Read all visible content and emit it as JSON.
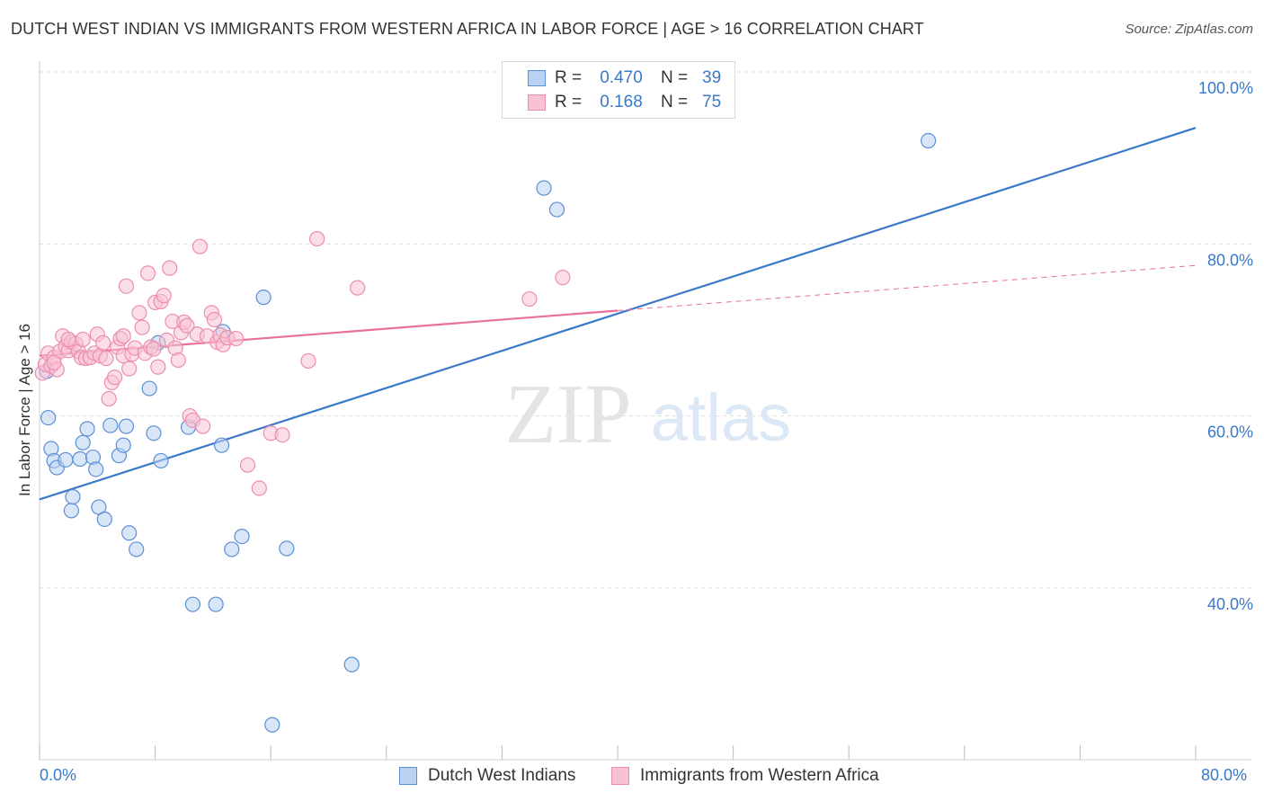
{
  "title": "DUTCH WEST INDIAN VS IMMIGRANTS FROM WESTERN AFRICA IN LABOR FORCE | AGE > 16 CORRELATION CHART",
  "source": "Source: ZipAtlas.com",
  "watermark": {
    "zip": "ZIP",
    "atlas": "atlas"
  },
  "legend": {
    "series1": {
      "r_label": "R =",
      "r_value": "0.470",
      "n_label": "N =",
      "n_value": "39"
    },
    "series2": {
      "r_label": "R =",
      "r_value": "0.168",
      "n_label": "N =",
      "n_value": "75"
    }
  },
  "x_min_label": "0.0%",
  "x_max_label": "80.0%",
  "colors": {
    "blue": "#3a78c9",
    "blue_fill": "#b9d2f2",
    "blue_stroke": "#5b8fd6",
    "pink": "#e8709a",
    "pink_fill": "#f7c3d3",
    "pink_stroke": "#eb8eaf",
    "grid": "#dddddd",
    "axis_text": "#3a78c9"
  },
  "chart_data": {
    "type": "scatter",
    "title": "DUTCH WEST INDIAN VS IMMIGRANTS FROM WESTERN AFRICA IN LABOR FORCE | AGE > 16 CORRELATION CHART",
    "xlabel": "",
    "ylabel": "In Labor Force | Age > 16",
    "xlim": [
      0,
      80
    ],
    "ylim": [
      20,
      102
    ],
    "y_ticks": [
      40,
      60,
      80,
      100
    ],
    "y_tick_labels": [
      "40.0%",
      "60.0%",
      "80.0%",
      "100.0%"
    ],
    "grid": true,
    "legend_position": "top-center",
    "series": [
      {
        "name": "Dutch West Indians",
        "color": "#3a78c9",
        "r": 0.47,
        "n": 39,
        "trend": {
          "x": [
            0,
            80
          ],
          "y": [
            50.3,
            93.5
          ],
          "dashed_from": null
        },
        "points": [
          [
            0.5,
            65.2
          ],
          [
            0.6,
            59.8
          ],
          [
            0.8,
            56.2
          ],
          [
            1.0,
            54.8
          ],
          [
            1.2,
            54.0
          ],
          [
            1.8,
            54.9
          ],
          [
            2.2,
            49.0
          ],
          [
            2.3,
            50.6
          ],
          [
            2.8,
            55.0
          ],
          [
            3.0,
            56.9
          ],
          [
            3.3,
            58.5
          ],
          [
            3.7,
            55.2
          ],
          [
            3.9,
            53.8
          ],
          [
            4.1,
            49.4
          ],
          [
            4.5,
            48.0
          ],
          [
            4.9,
            58.9
          ],
          [
            5.5,
            55.4
          ],
          [
            5.8,
            56.6
          ],
          [
            6.0,
            58.8
          ],
          [
            6.2,
            46.4
          ],
          [
            6.7,
            44.5
          ],
          [
            7.6,
            63.2
          ],
          [
            7.9,
            58.0
          ],
          [
            8.2,
            68.5
          ],
          [
            8.4,
            54.8
          ],
          [
            10.3,
            58.7
          ],
          [
            10.6,
            38.1
          ],
          [
            12.2,
            38.1
          ],
          [
            12.6,
            56.6
          ],
          [
            12.7,
            69.8
          ],
          [
            13.3,
            44.5
          ],
          [
            14.0,
            46.0
          ],
          [
            15.5,
            73.8
          ],
          [
            16.1,
            24.1
          ],
          [
            17.1,
            44.6
          ],
          [
            21.6,
            31.1
          ],
          [
            34.9,
            86.5
          ],
          [
            35.8,
            84.0
          ],
          [
            61.5,
            92.0
          ]
        ]
      },
      {
        "name": "Immigrants from Western Africa",
        "color": "#e8709a",
        "r": 0.168,
        "n": 75,
        "trend": {
          "x": [
            0,
            80
          ],
          "y": [
            67.0,
            77.5
          ],
          "dashed_from": 40
        },
        "points": [
          [
            0.2,
            65.0
          ],
          [
            0.4,
            66.0
          ],
          [
            0.6,
            67.3
          ],
          [
            0.8,
            65.8
          ],
          [
            1.0,
            66.8
          ],
          [
            1.2,
            65.4
          ],
          [
            1.4,
            67.5
          ],
          [
            1.6,
            69.3
          ],
          [
            1.8,
            68.1
          ],
          [
            2.0,
            67.6
          ],
          [
            2.2,
            68.6
          ],
          [
            2.5,
            68.4
          ],
          [
            2.7,
            67.5
          ],
          [
            2.9,
            66.8
          ],
          [
            3.2,
            66.7
          ],
          [
            3.5,
            66.8
          ],
          [
            3.8,
            67.3
          ],
          [
            4.0,
            69.5
          ],
          [
            4.2,
            67.0
          ],
          [
            4.4,
            68.5
          ],
          [
            4.6,
            66.7
          ],
          [
            4.8,
            62.0
          ],
          [
            5.0,
            63.9
          ],
          [
            5.2,
            64.5
          ],
          [
            5.4,
            68.0
          ],
          [
            5.6,
            69.0
          ],
          [
            5.8,
            67.0
          ],
          [
            6.0,
            75.1
          ],
          [
            6.2,
            65.5
          ],
          [
            6.4,
            67.2
          ],
          [
            6.6,
            67.9
          ],
          [
            6.9,
            72.0
          ],
          [
            7.1,
            70.3
          ],
          [
            7.3,
            67.3
          ],
          [
            7.5,
            76.6
          ],
          [
            7.7,
            68.0
          ],
          [
            7.9,
            67.8
          ],
          [
            8.0,
            73.2
          ],
          [
            8.2,
            65.7
          ],
          [
            8.4,
            73.3
          ],
          [
            8.6,
            74.0
          ],
          [
            8.8,
            68.8
          ],
          [
            9.0,
            77.2
          ],
          [
            9.2,
            71.0
          ],
          [
            9.4,
            67.9
          ],
          [
            9.6,
            66.5
          ],
          [
            9.8,
            69.7
          ],
          [
            10.0,
            70.9
          ],
          [
            10.2,
            70.5
          ],
          [
            10.4,
            60.0
          ],
          [
            10.6,
            59.5
          ],
          [
            10.9,
            69.5
          ],
          [
            11.1,
            79.7
          ],
          [
            11.3,
            58.8
          ],
          [
            11.6,
            69.3
          ],
          [
            11.9,
            72.0
          ],
          [
            12.1,
            71.2
          ],
          [
            12.3,
            68.6
          ],
          [
            12.5,
            69.4
          ],
          [
            12.7,
            68.3
          ],
          [
            13.0,
            69.1
          ],
          [
            13.6,
            69.0
          ],
          [
            14.4,
            54.3
          ],
          [
            15.2,
            51.6
          ],
          [
            16.0,
            58.0
          ],
          [
            16.8,
            57.8
          ],
          [
            18.6,
            66.4
          ],
          [
            19.2,
            80.6
          ],
          [
            22.0,
            74.9
          ],
          [
            33.9,
            73.6
          ],
          [
            36.2,
            76.1
          ],
          [
            2.0,
            68.9
          ],
          [
            3.0,
            68.9
          ],
          [
            5.8,
            69.3
          ],
          [
            1.0,
            66.2
          ]
        ]
      }
    ]
  }
}
